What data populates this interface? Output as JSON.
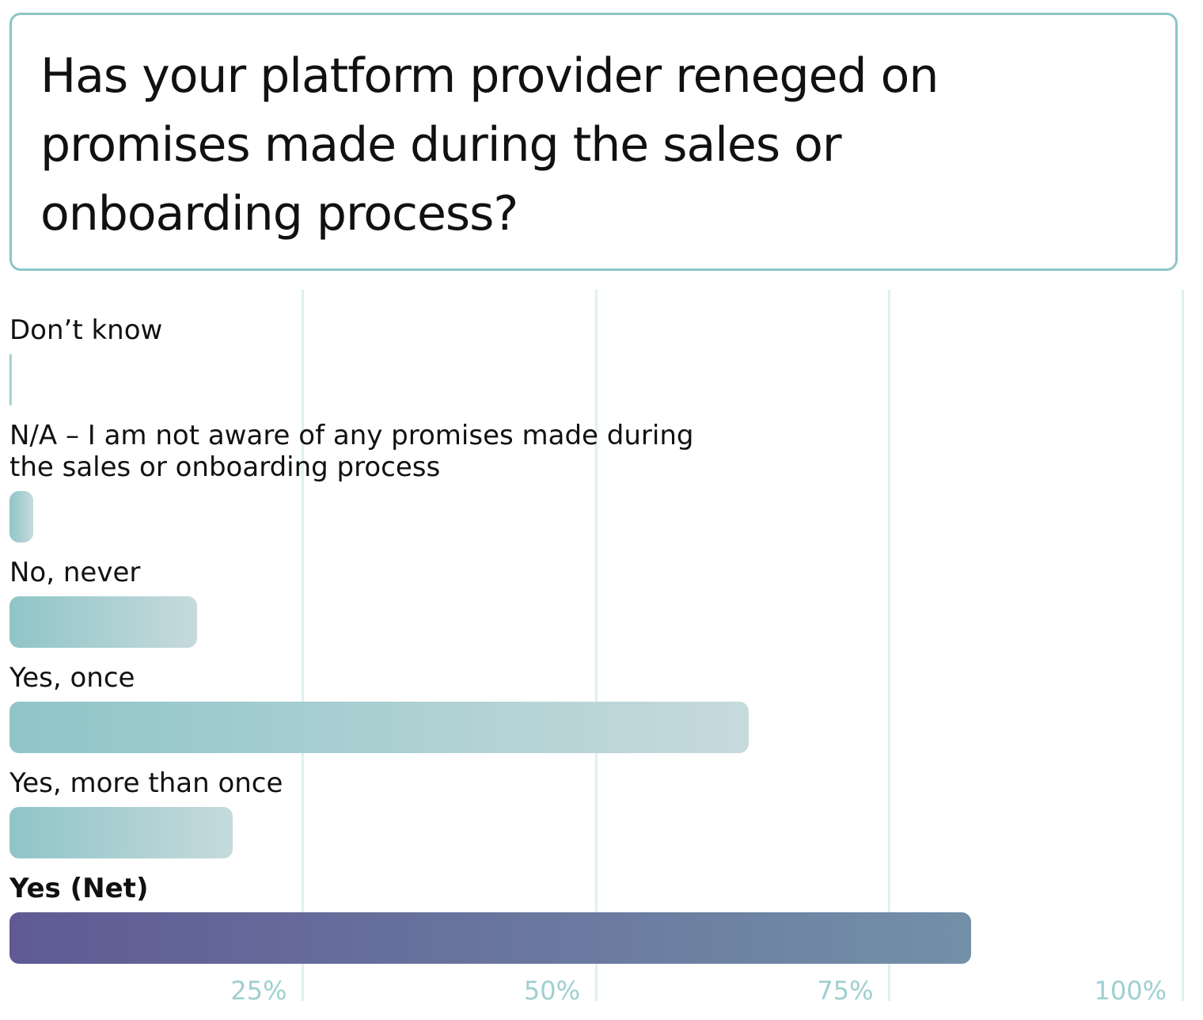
{
  "chart_data": {
    "type": "bar",
    "orientation": "horizontal",
    "title": "Has your platform provider reneged on promises made during the sales or onboarding process?",
    "categories": [
      "Don’t know",
      "N/A – I am not aware of any promises made during the sales or onboarding process",
      "No, never",
      "Yes, once",
      "Yes, more than once",
      "Yes (Net)"
    ],
    "values": [
      0.2,
      2,
      16,
      63,
      19,
      82
    ],
    "colors": [
      "#8fc5c7",
      "#8fc5c7",
      "#8fc5c7",
      "#8fc5c7",
      "#8fc5c7",
      "#5f5a94"
    ],
    "xlim": [
      0,
      100
    ],
    "xticks": [
      {
        "value": 25,
        "label": "25%"
      },
      {
        "value": 50,
        "label": "50%"
      },
      {
        "value": 75,
        "label": "75%"
      },
      {
        "value": 100,
        "label": "100%"
      }
    ],
    "grid": true
  }
}
